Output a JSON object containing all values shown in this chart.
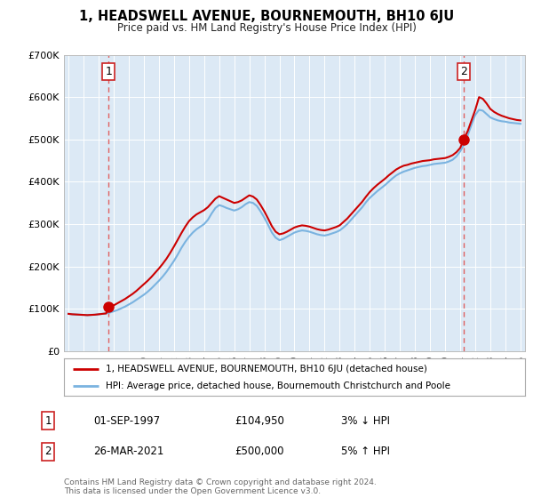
{
  "title": "1, HEADSWELL AVENUE, BOURNEMOUTH, BH10 6JU",
  "subtitle": "Price paid vs. HM Land Registry's House Price Index (HPI)",
  "bg_color": "#dce9f5",
  "hpi_color": "#7ab3e0",
  "property_color": "#cc0000",
  "ylim": [
    0,
    700000
  ],
  "yticks": [
    0,
    100000,
    200000,
    300000,
    400000,
    500000,
    600000,
    700000
  ],
  "ytick_labels": [
    "£0",
    "£100K",
    "£200K",
    "£300K",
    "£400K",
    "£500K",
    "£600K",
    "£700K"
  ],
  "x_start_year": 1995,
  "x_end_year": 2025,
  "transaction1_date": 1997.67,
  "transaction1_price": 104950,
  "transaction2_date": 2021.23,
  "transaction2_price": 500000,
  "legend_property": "1, HEADSWELL AVENUE, BOURNEMOUTH, BH10 6JU (detached house)",
  "legend_hpi": "HPI: Average price, detached house, Bournemouth Christchurch and Poole",
  "table_row1": [
    "1",
    "01-SEP-1997",
    "£104,950",
    "3% ↓ HPI"
  ],
  "table_row2": [
    "2",
    "26-MAR-2021",
    "£500,000",
    "5% ↑ HPI"
  ],
  "footer": "Contains HM Land Registry data © Crown copyright and database right 2024.\nThis data is licensed under the Open Government Licence v3.0.",
  "hpi_years": [
    1995.0,
    1995.25,
    1995.5,
    1995.75,
    1996.0,
    1996.25,
    1996.5,
    1996.75,
    1997.0,
    1997.25,
    1997.5,
    1997.75,
    1998.0,
    1998.25,
    1998.5,
    1998.75,
    1999.0,
    1999.25,
    1999.5,
    1999.75,
    2000.0,
    2000.25,
    2000.5,
    2000.75,
    2001.0,
    2001.25,
    2001.5,
    2001.75,
    2002.0,
    2002.25,
    2002.5,
    2002.75,
    2003.0,
    2003.25,
    2003.5,
    2003.75,
    2004.0,
    2004.25,
    2004.5,
    2004.75,
    2005.0,
    2005.25,
    2005.5,
    2005.75,
    2006.0,
    2006.25,
    2006.5,
    2006.75,
    2007.0,
    2007.25,
    2007.5,
    2007.75,
    2008.0,
    2008.25,
    2008.5,
    2008.75,
    2009.0,
    2009.25,
    2009.5,
    2009.75,
    2010.0,
    2010.25,
    2010.5,
    2010.75,
    2011.0,
    2011.25,
    2011.5,
    2011.75,
    2012.0,
    2012.25,
    2012.5,
    2012.75,
    2013.0,
    2013.25,
    2013.5,
    2013.75,
    2014.0,
    2014.25,
    2014.5,
    2014.75,
    2015.0,
    2015.25,
    2015.5,
    2015.75,
    2016.0,
    2016.25,
    2016.5,
    2016.75,
    2017.0,
    2017.25,
    2017.5,
    2017.75,
    2018.0,
    2018.25,
    2018.5,
    2018.75,
    2019.0,
    2019.25,
    2019.5,
    2019.75,
    2020.0,
    2020.25,
    2020.5,
    2020.75,
    2021.0,
    2021.25,
    2021.5,
    2021.75,
    2022.0,
    2022.25,
    2022.5,
    2022.75,
    2023.0,
    2023.25,
    2023.5,
    2023.75,
    2024.0,
    2024.25,
    2024.5,
    2024.75,
    2025.0
  ],
  "hpi_values": [
    88000,
    87000,
    86500,
    86000,
    85500,
    85000,
    85500,
    86000,
    87000,
    88000,
    89000,
    91000,
    94000,
    97000,
    101000,
    105000,
    110000,
    115000,
    121000,
    127000,
    133000,
    140000,
    148000,
    157000,
    166000,
    176000,
    187000,
    200000,
    213000,
    228000,
    244000,
    258000,
    270000,
    280000,
    288000,
    294000,
    300000,
    310000,
    325000,
    338000,
    345000,
    342000,
    338000,
    335000,
    332000,
    335000,
    340000,
    347000,
    352000,
    350000,
    343000,
    330000,
    315000,
    298000,
    280000,
    268000,
    262000,
    265000,
    270000,
    275000,
    280000,
    283000,
    285000,
    284000,
    282000,
    279000,
    276000,
    274000,
    273000,
    275000,
    278000,
    281000,
    285000,
    292000,
    300000,
    310000,
    320000,
    330000,
    340000,
    352000,
    362000,
    370000,
    378000,
    385000,
    392000,
    400000,
    408000,
    415000,
    420000,
    424000,
    427000,
    430000,
    433000,
    435000,
    437000,
    438000,
    440000,
    442000,
    443000,
    444000,
    445000,
    448000,
    452000,
    460000,
    472000,
    488000,
    510000,
    535000,
    558000,
    570000,
    568000,
    560000,
    552000,
    548000,
    545000,
    543000,
    542000,
    540000,
    539000,
    538000,
    537000
  ],
  "prop_years": [
    1995.0,
    1995.25,
    1995.5,
    1995.75,
    1996.0,
    1996.25,
    1996.5,
    1996.75,
    1997.0,
    1997.25,
    1997.5,
    1997.67,
    1998.0,
    1998.25,
    1998.5,
    1998.75,
    1999.0,
    1999.25,
    1999.5,
    1999.75,
    2000.0,
    2000.25,
    2000.5,
    2000.75,
    2001.0,
    2001.25,
    2001.5,
    2001.75,
    2002.0,
    2002.25,
    2002.5,
    2002.75,
    2003.0,
    2003.25,
    2003.5,
    2003.75,
    2004.0,
    2004.25,
    2004.5,
    2004.75,
    2005.0,
    2005.25,
    2005.5,
    2005.75,
    2006.0,
    2006.25,
    2006.5,
    2006.75,
    2007.0,
    2007.25,
    2007.5,
    2007.75,
    2008.0,
    2008.25,
    2008.5,
    2008.75,
    2009.0,
    2009.25,
    2009.5,
    2009.75,
    2010.0,
    2010.25,
    2010.5,
    2010.75,
    2011.0,
    2011.25,
    2011.5,
    2011.75,
    2012.0,
    2012.25,
    2012.5,
    2012.75,
    2013.0,
    2013.25,
    2013.5,
    2013.75,
    2014.0,
    2014.25,
    2014.5,
    2014.75,
    2015.0,
    2015.25,
    2015.5,
    2015.75,
    2016.0,
    2016.25,
    2016.5,
    2016.75,
    2017.0,
    2017.25,
    2017.5,
    2017.75,
    2018.0,
    2018.25,
    2018.5,
    2018.75,
    2019.0,
    2019.25,
    2019.5,
    2019.75,
    2020.0,
    2020.25,
    2020.5,
    2020.75,
    2021.0,
    2021.23,
    2021.5,
    2021.75,
    2022.0,
    2022.25,
    2022.5,
    2022.75,
    2023.0,
    2023.25,
    2023.5,
    2023.75,
    2024.0,
    2024.25,
    2024.5,
    2024.75,
    2025.0
  ],
  "prop_values": [
    88000,
    87000,
    86500,
    86000,
    85500,
    85000,
    85500,
    86000,
    87000,
    88000,
    89000,
    104950,
    108000,
    113000,
    118000,
    123000,
    129000,
    135000,
    142000,
    150000,
    158000,
    166000,
    175000,
    185000,
    195000,
    206000,
    218000,
    232000,
    247000,
    263000,
    279000,
    294000,
    307000,
    316000,
    323000,
    328000,
    333000,
    340000,
    350000,
    360000,
    366000,
    362000,
    358000,
    354000,
    350000,
    352000,
    356000,
    362000,
    368000,
    365000,
    358000,
    345000,
    330000,
    313000,
    295000,
    282000,
    276000,
    278000,
    282000,
    287000,
    292000,
    295000,
    297000,
    296000,
    294000,
    291000,
    288000,
    286000,
    285000,
    287000,
    290000,
    293000,
    297000,
    305000,
    313000,
    323000,
    333000,
    343000,
    353000,
    365000,
    376000,
    385000,
    393000,
    400000,
    407000,
    415000,
    422000,
    429000,
    434000,
    438000,
    440000,
    443000,
    445000,
    447000,
    449000,
    450000,
    451000,
    453000,
    454000,
    455000,
    456000,
    459000,
    463000,
    470000,
    480000,
    500000,
    520000,
    545000,
    570000,
    600000,
    596000,
    585000,
    572000,
    565000,
    560000,
    556000,
    553000,
    550000,
    548000,
    546000,
    545000
  ]
}
